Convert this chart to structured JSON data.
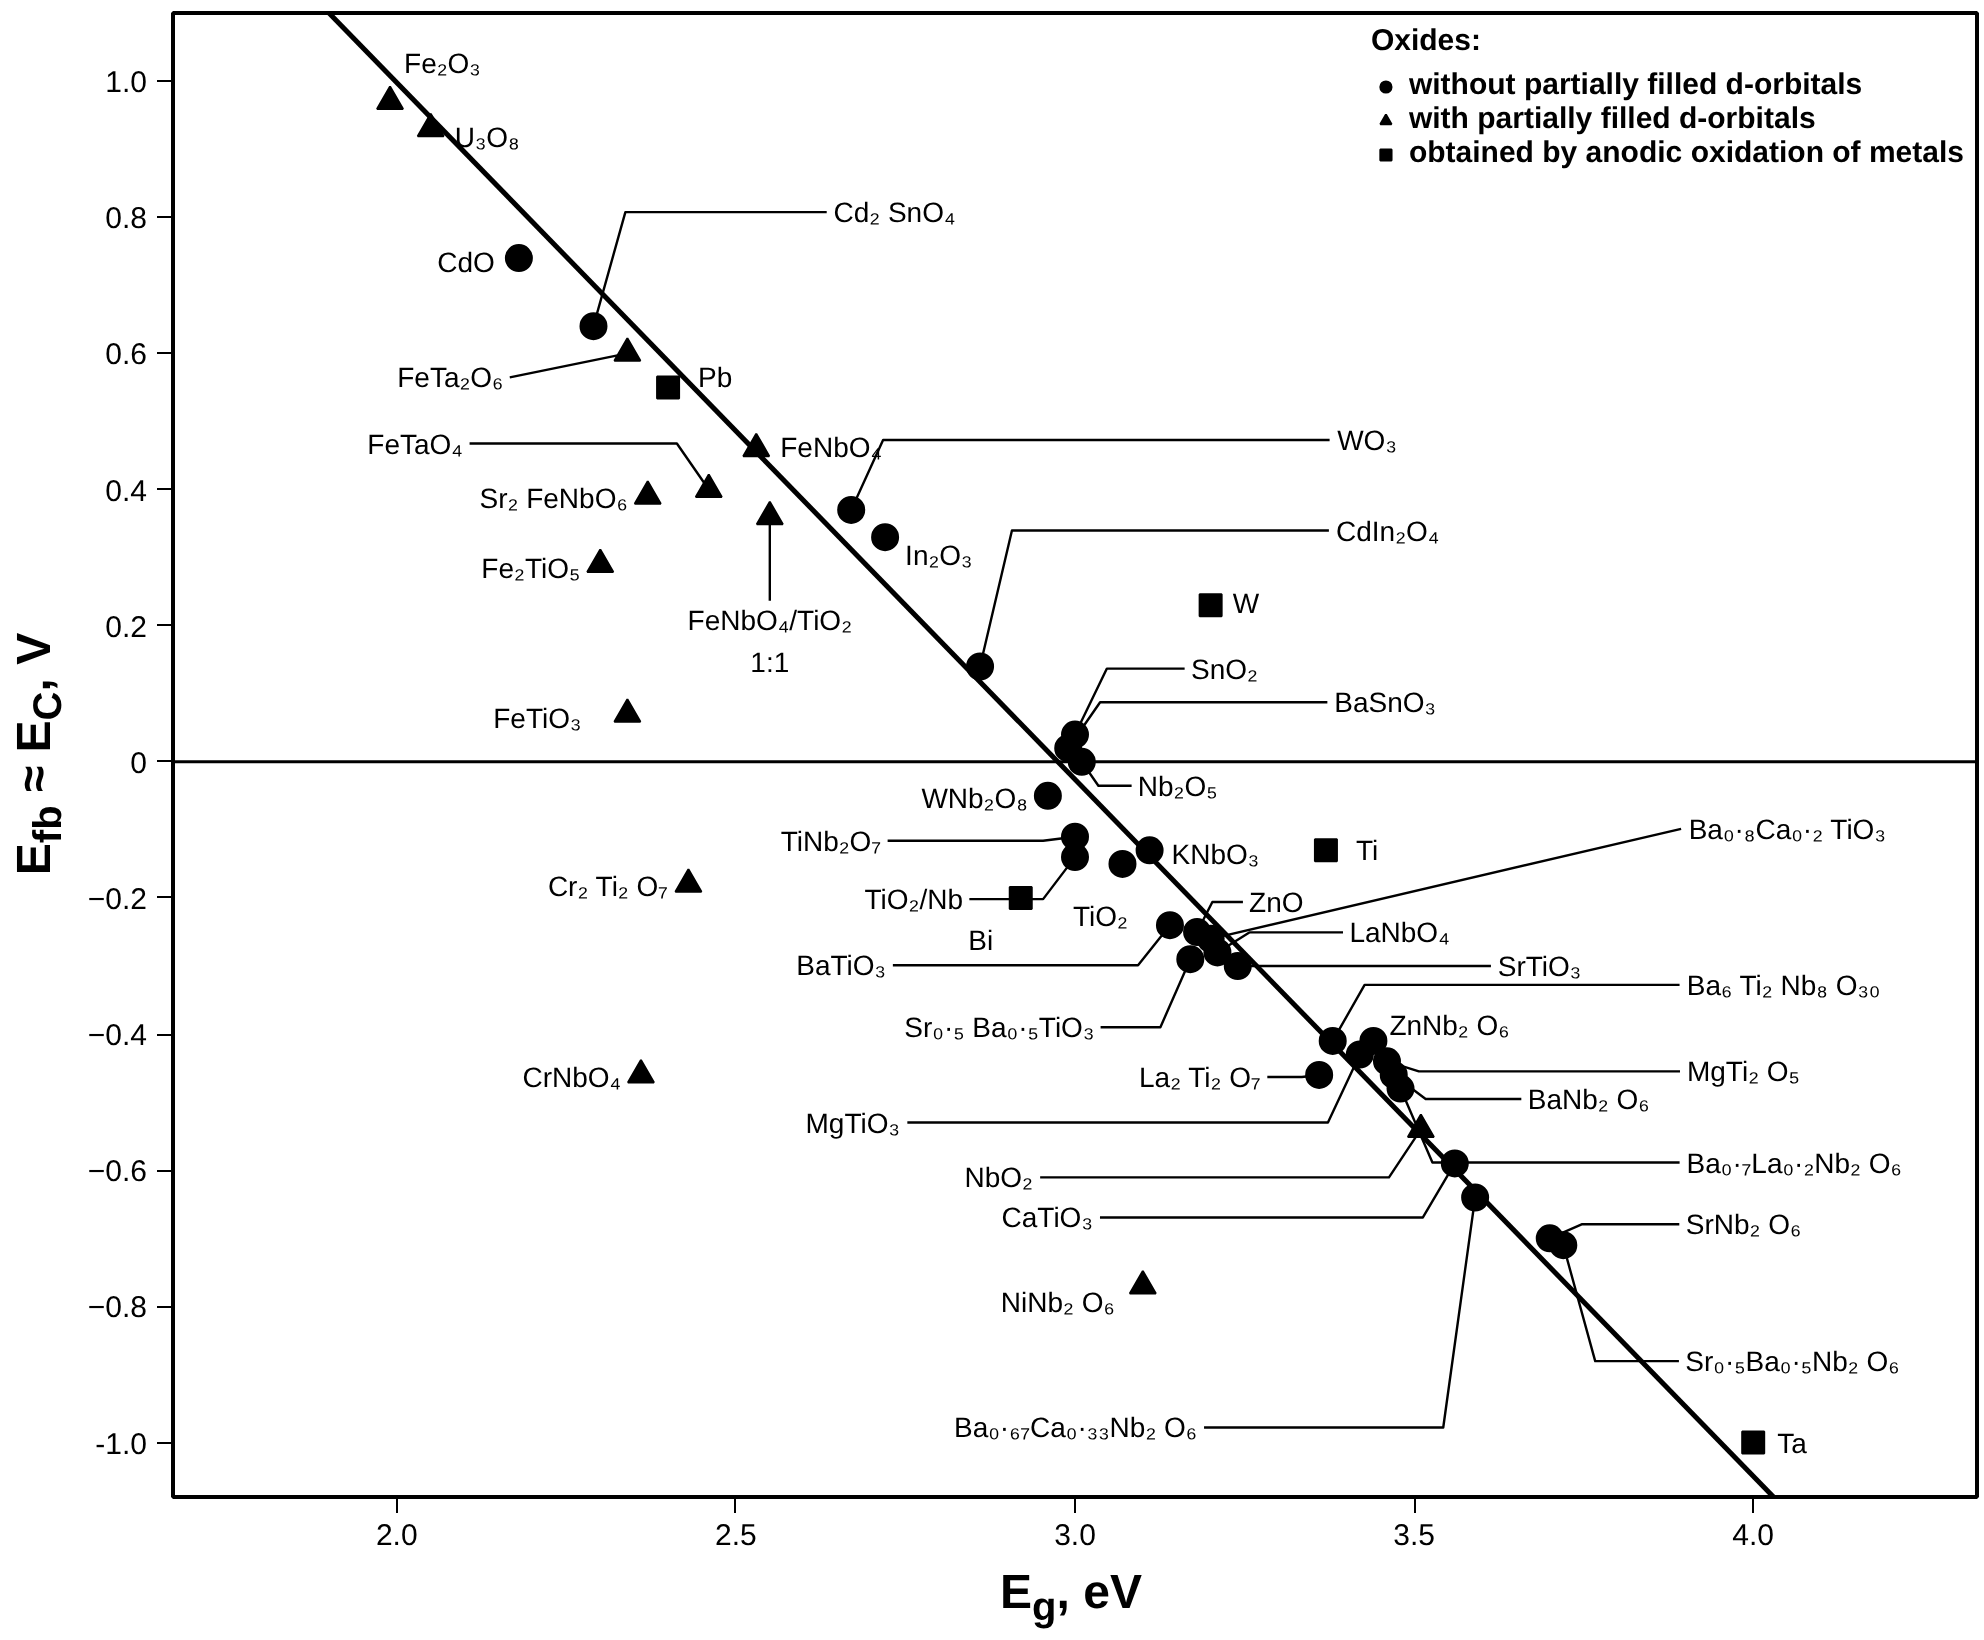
{
  "chart_data": {
    "type": "scatter",
    "xlabel": "E$_{g}$, eV",
    "ylabel": "E$_{fb}$ ≈ E$_{C}$, V",
    "legend_title": "Oxides:",
    "xlim": [
      1.67,
      4.33
    ],
    "ylim": [
      -1.08,
      1.1
    ],
    "xticks": [
      {
        "value": 2.0,
        "label": "2.0"
      },
      2.5,
      {
        "value": 3.0,
        "label": "3.0"
      },
      3.5,
      {
        "value": 4.0,
        "label": "4.0"
      }
    ],
    "yticks": [
      {
        "value": -1.0,
        "label": "-1.0"
      },
      -0.8,
      -0.6,
      -0.4,
      -0.2,
      0,
      0.2,
      0.4,
      0.6,
      0.8,
      {
        "value": 1.0,
        "label": "1.0"
      }
    ],
    "grid": false,
    "legend": "top right",
    "ref_lines": [
      {
        "axis": "y",
        "value": 0,
        "color": "#000000"
      }
    ],
    "series": [
      {
        "name": "without partially filled d-orbitals",
        "color": "#000000",
        "marker": "circle",
        "x": [
          2.18,
          2.29,
          2.67,
          2.72,
          2.86,
          3.0,
          2.99,
          3.01,
          2.96,
          3.0,
          3.0,
          3.07,
          3.11,
          3.14,
          3.18,
          3.2,
          3.21,
          3.17,
          3.24,
          3.38,
          3.36,
          3.44,
          3.42,
          3.46,
          3.47,
          3.48,
          3.56,
          3.59,
          3.7,
          3.72
        ],
        "values": [
          0.74,
          0.64,
          0.37,
          0.33,
          0.14,
          0.04,
          0.02,
          0.0,
          -0.05,
          -0.11,
          -0.14,
          -0.15,
          -0.13,
          -0.24,
          -0.25,
          -0.26,
          -0.28,
          -0.29,
          -0.3,
          -0.41,
          -0.46,
          -0.41,
          -0.43,
          -0.44,
          -0.46,
          -0.48,
          -0.59,
          -0.64,
          -0.7,
          -0.71
        ]
      },
      {
        "name": "with partially filled d-orbitals",
        "color": "#000000",
        "marker": "triangle",
        "x": [
          1.99,
          2.05,
          2.34,
          2.46,
          2.37,
          2.53,
          2.55,
          2.3,
          2.34,
          2.43,
          2.36,
          3.51,
          3.1
        ],
        "values": [
          0.97,
          0.93,
          0.6,
          0.4,
          0.39,
          0.46,
          0.36,
          0.29,
          0.07,
          -0.18,
          -0.46,
          -0.54,
          -0.77
        ]
      },
      {
        "name": "obtained by anodic oxidation of metals",
        "color": "#000000",
        "marker": "square",
        "x": [
          2.4,
          3.2,
          3.37,
          2.92,
          4.0
        ],
        "values": [
          0.55,
          0.23,
          -0.13,
          -0.2,
          -1.0
        ]
      },
      {
        "type": "line",
        "color": "#000000",
        "x": [
          1.9,
          4.03
        ],
        "values": [
          1.1,
          -1.08
        ]
      }
    ],
    "annotations": [
      {
        "text": "Fe₂O₃",
        "x": 1.99,
        "y": 0.97
      },
      {
        "text": "U₃O₈",
        "x": 2.05,
        "y": 0.93
      },
      {
        "text": "CdO",
        "x": 2.18,
        "y": 0.74
      },
      {
        "text": "Cd₂ SnO₄",
        "x": 2.29,
        "y": 0.64
      },
      {
        "text": "FeTa₂O₆",
        "x": 2.34,
        "y": 0.6
      },
      {
        "text": "Pb",
        "x": 2.4,
        "y": 0.55
      },
      {
        "text": "FeTaO₄",
        "x": 2.46,
        "y": 0.4
      },
      {
        "text": "Sr₂ FeNbO₆",
        "x": 2.37,
        "y": 0.39
      },
      {
        "text": "FeNbO₄",
        "x": 2.53,
        "y": 0.46
      },
      {
        "text": "FeNbO₄/TiO₂\n1:1",
        "x": 2.55,
        "y": 0.36
      },
      {
        "text": "Fe₂TiO₅",
        "x": 2.3,
        "y": 0.29
      },
      {
        "text": "FeTiO₃",
        "x": 2.34,
        "y": 0.07
      },
      {
        "text": "WO₃",
        "x": 2.67,
        "y": 0.37
      },
      {
        "text": "In₂O₃",
        "x": 2.72,
        "y": 0.33
      },
      {
        "text": "CdIn₂O₄",
        "x": 2.86,
        "y": 0.14
      },
      {
        "text": "W",
        "x": 3.2,
        "y": 0.23
      },
      {
        "text": "SnO₂",
        "x": 3.0,
        "y": 0.04
      },
      {
        "text": "BaSnO₃",
        "x": 2.99,
        "y": 0.02
      },
      {
        "text": "Nb₂O₅",
        "x": 3.01,
        "y": 0.0
      },
      {
        "text": "WNb₂O₈",
        "x": 2.96,
        "y": -0.05
      },
      {
        "text": "TiNb₂O₇",
        "x": 3.0,
        "y": -0.11
      },
      {
        "text": "TiO₂/Nb",
        "x": 3.0,
        "y": -0.14
      },
      {
        "text": "KNbO₃",
        "x": 3.11,
        "y": -0.13
      },
      {
        "text": "Ti",
        "x": 3.37,
        "y": -0.13
      },
      {
        "text": "Bi",
        "x": 2.92,
        "y": -0.2
      },
      {
        "text": "TiO₂",
        "x": 3.07,
        "y": -0.15
      },
      {
        "text": "BaTiO₃",
        "x": 3.14,
        "y": -0.24
      },
      {
        "text": "ZnO",
        "x": 3.18,
        "y": -0.25
      },
      {
        "text": "Ba₀·₈Ca₀·₂ TiO₃",
        "x": 3.2,
        "y": -0.26
      },
      {
        "text": "LaNbO₄",
        "x": 3.21,
        "y": -0.28
      },
      {
        "text": "Sr₀·₅ Ba₀·₅TiO₃",
        "x": 3.17,
        "y": -0.29
      },
      {
        "text": "SrTiO₃",
        "x": 3.24,
        "y": -0.3
      },
      {
        "text": "Ba₆ Ti₂ Nb₈ O₃₀",
        "x": 3.38,
        "y": -0.41
      },
      {
        "text": "ZnNb₂ O₆",
        "x": 3.44,
        "y": -0.41
      },
      {
        "text": "La₂ Ti₂ O₇",
        "x": 3.36,
        "y": -0.46
      },
      {
        "text": "MgTi₂ O₅",
        "x": 3.46,
        "y": -0.44
      },
      {
        "text": "MgTiO₃",
        "x": 3.42,
        "y": -0.43
      },
      {
        "text": "BaNb₂ O₆",
        "x": 3.47,
        "y": -0.46
      },
      {
        "text": "Ba₀·₇La₀·₂Nb₂ O₆",
        "x": 3.48,
        "y": -0.48
      },
      {
        "text": "NbO₂",
        "x": 3.51,
        "y": -0.54
      },
      {
        "text": "CaTiO₃",
        "x": 3.56,
        "y": -0.59
      },
      {
        "text": "Ba₀·₆₇Ca₀·₃₃Nb₂ O₆",
        "x": 3.59,
        "y": -0.64
      },
      {
        "text": "NiNb₂ O₆",
        "x": 3.1,
        "y": -0.77
      },
      {
        "text": "SrNb₂ O₆",
        "x": 3.7,
        "y": -0.7
      },
      {
        "text": "Sr₀·₅Ba₀·₅Nb₂ O₆",
        "x": 3.72,
        "y": -0.71
      },
      {
        "text": "Ta",
        "x": 4.0,
        "y": -1.0
      },
      {
        "text": "Cr₂ Ti₂ O₇",
        "x": 2.43,
        "y": -0.18
      },
      {
        "text": "CrNbO₄",
        "x": 2.36,
        "y": -0.46
      }
    ]
  }
}
